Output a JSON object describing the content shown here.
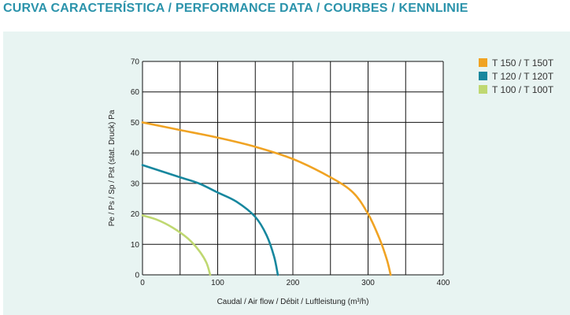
{
  "page": {
    "title": "CURVA CARACTERÍSTICA / PERFORMANCE DATA / COURBES / KENNLINIE"
  },
  "chart_data": {
    "type": "line",
    "title": "",
    "xlabel": "Caudal / Air flow / Débit / Luftleistung (m³/h)",
    "ylabel": "Pe / Ps / Sp / Pst (stat. Druck) Pa",
    "xlim": [
      0,
      400
    ],
    "ylim": [
      0,
      70
    ],
    "xticks": [
      0,
      100,
      200,
      300,
      400
    ],
    "yticks": [
      0,
      10,
      20,
      30,
      40,
      50,
      60,
      70
    ],
    "grid": true,
    "legend_position": "top-right",
    "series": [
      {
        "name": "T 150 / T 150T",
        "color": "#f0a323",
        "x": [
          0,
          50,
          100,
          150,
          200,
          250,
          280,
          300,
          315,
          325,
          330
        ],
        "y": [
          50,
          47.5,
          45,
          42,
          38,
          32,
          27,
          20,
          12,
          5,
          0
        ]
      },
      {
        "name": "T 120 / T 120T",
        "color": "#17879e",
        "x": [
          0,
          25,
          50,
          75,
          100,
          125,
          150,
          165,
          175,
          180
        ],
        "y": [
          36,
          34,
          32,
          30,
          27,
          24,
          19,
          13,
          6,
          0
        ]
      },
      {
        "name": "T 100 / T 100T",
        "color": "#bfd871",
        "x": [
          0,
          20,
          40,
          60,
          75,
          85,
          90
        ],
        "y": [
          19.5,
          18,
          15.5,
          12,
          8,
          4,
          0
        ]
      }
    ]
  }
}
